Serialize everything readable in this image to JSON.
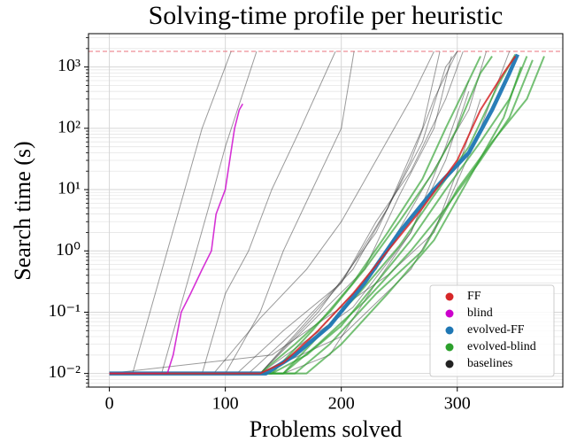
{
  "chart_data": {
    "type": "line",
    "title": "Solving-time profile per heuristic",
    "xlabel": "Problems solved",
    "ylabel": "Search time (s)",
    "yscale": "log",
    "xlim": [
      -18,
      391
    ],
    "ylim": [
      0.006,
      3500
    ],
    "xticks": [
      0,
      100,
      200,
      300
    ],
    "yticks": [
      {
        "value": 0.01,
        "label": "10⁻²"
      },
      {
        "value": 0.1,
        "label": "10⁻¹"
      },
      {
        "value": 1,
        "label": "10⁰"
      },
      {
        "value": 10,
        "label": "10¹"
      },
      {
        "value": 100,
        "label": "10²"
      },
      {
        "value": 1000,
        "label": "10³"
      }
    ],
    "yminorticks": [
      0.006,
      0.007,
      0.008,
      0.009,
      0.02,
      0.03,
      0.04,
      0.05,
      0.06,
      0.07,
      0.08,
      0.09,
      0.2,
      0.3,
      0.4,
      0.5,
      0.6,
      0.7,
      0.8,
      0.9,
      2,
      3,
      4,
      5,
      6,
      7,
      8,
      9,
      20,
      30,
      40,
      50,
      60,
      70,
      80,
      90,
      200,
      300,
      400,
      500,
      600,
      700,
      800,
      900,
      2000,
      3000
    ],
    "grid": true,
    "reference_line": {
      "value": 1800,
      "color": "#e8707c"
    },
    "legend": "lower right",
    "series": [
      {
        "name": "FF",
        "color": "#d62728",
        "lines": [
          {
            "x": [
              0,
              130,
              150,
              180,
              210,
              240,
              270,
              300,
              320,
              340,
              350
            ],
            "values": [
              0.01,
              0.01,
              0.015,
              0.05,
              0.2,
              1,
              5,
              30,
              200,
              800,
              1500
            ]
          }
        ]
      },
      {
        "name": "blind",
        "color": "#cc00cc",
        "lines": [
          {
            "x": [
              0,
              50,
              55,
              62,
              70,
              80,
              88,
              92,
              100,
              108,
              112,
              115
            ],
            "values": [
              0.01,
              0.01,
              0.02,
              0.1,
              0.2,
              0.5,
              1,
              4,
              10,
              100,
              200,
              250
            ]
          }
        ]
      },
      {
        "name": "evolved-FF",
        "color": "#1f77b4",
        "lines": [
          {
            "x": [
              0,
              135,
              160,
              190,
              220,
              250,
              280,
              310,
              330,
              345,
              352
            ],
            "values": [
              0.01,
              0.01,
              0.02,
              0.06,
              0.3,
              2,
              10,
              40,
              200,
              800,
              1600
            ]
          }
        ]
      },
      {
        "name": "evolved-blind",
        "color": "#2ca02c",
        "lines": [
          {
            "x": [
              0,
              140,
              170,
              200,
              230,
              260,
              290,
              320,
              345,
              360
            ],
            "values": [
              0.01,
              0.01,
              0.02,
              0.06,
              0.3,
              1.5,
              10,
              60,
              300,
              1500
            ]
          },
          {
            "x": [
              0,
              160,
              190,
              230,
              270,
              300,
              330,
              360,
              375
            ],
            "values": [
              0.01,
              0.01,
              0.03,
              0.2,
              1,
              10,
              60,
              300,
              1500
            ]
          },
          {
            "x": [
              0,
              130,
              160,
              190,
              220,
              250,
              280,
              300,
              320,
              330
            ],
            "values": [
              0.01,
              0.01,
              0.03,
              0.1,
              0.5,
              3,
              20,
              100,
              800,
              1500
            ]
          },
          {
            "x": [
              0,
              150,
              180,
              220,
              260,
              290,
              320,
              345,
              365
            ],
            "values": [
              0.01,
              0.01,
              0.03,
              0.15,
              1,
              5,
              30,
              150,
              1300
            ]
          },
          {
            "x": [
              0,
              140,
              175,
              210,
              240,
              270,
              290,
              310,
              320
            ],
            "values": [
              0.01,
              0.01,
              0.05,
              0.3,
              2,
              15,
              100,
              600,
              1500
            ]
          },
          {
            "x": [
              0,
              170,
              200,
              240,
              280,
              310,
              340,
              355
            ],
            "values": [
              0.01,
              0.01,
              0.03,
              0.2,
              1.5,
              15,
              150,
              1000
            ]
          },
          {
            "x": [
              0,
              150,
              180,
              215,
              250,
              280,
              310,
              335,
              350
            ],
            "values": [
              0.01,
              0.01,
              0.04,
              0.2,
              1.2,
              8,
              50,
              500,
              1600
            ]
          }
        ]
      },
      {
        "name": "baselines",
        "color": "#222222",
        "lines": [
          {
            "x": [
              0,
              20,
              35,
              50,
              65,
              80,
              105
            ],
            "values": [
              0.01,
              0.01,
              0.1,
              1,
              10,
              100,
              1800
            ]
          },
          {
            "x": [
              0,
              45,
              60,
              75,
              90,
              100,
              127
            ],
            "values": [
              0.01,
              0.01,
              0.1,
              1,
              10,
              50,
              1800
            ]
          },
          {
            "x": [
              0,
              80,
              100,
              120,
              140,
              165,
              195
            ],
            "values": [
              0.01,
              0.01,
              0.2,
              1,
              10,
              100,
              1800
            ]
          },
          {
            "x": [
              0,
              100,
              130,
              150,
              175,
              200,
              211
            ],
            "values": [
              0.01,
              0.01,
              0.1,
              1,
              10,
              100,
              1800
            ]
          },
          {
            "x": [
              0,
              90,
              130,
              170,
              200,
              230,
              260,
              280
            ],
            "values": [
              0.01,
              0.01,
              0.08,
              0.5,
              3,
              30,
              300,
              1800
            ]
          },
          {
            "x": [
              0,
              110,
              150,
              200,
              230,
              260,
              290,
              305
            ],
            "values": [
              0.01,
              0.01,
              0.05,
              0.3,
              3,
              20,
              300,
              1800
            ]
          },
          {
            "x": [
              0,
              120,
              160,
              210,
              240,
              270,
              285
            ],
            "values": [
              0.01,
              0.01,
              0.05,
              0.5,
              5,
              100,
              1800
            ]
          },
          {
            "x": [
              0,
              130,
              180,
              230,
              260,
              280,
              300
            ],
            "values": [
              0.01,
              0.01,
              0.1,
              2,
              30,
              300,
              1800
            ]
          },
          {
            "x": [
              0,
              130,
              200,
              240,
              270,
              290,
              300
            ],
            "values": [
              0.01,
              0.01,
              0.3,
              5,
              60,
              1000,
              1800
            ]
          },
          {
            "x": [
              0,
              130,
              220,
              250,
              280,
              295
            ],
            "values": [
              0.01,
              0.01,
              0.5,
              8,
              100,
              1500
            ]
          },
          {
            "x": [
              0,
              130,
              160,
              230,
              270,
              310,
              325
            ],
            "values": [
              0.01,
              0.01,
              0.02,
              0.5,
              10,
              200,
              1800
            ]
          },
          {
            "x": [
              0,
              130,
              200,
              260,
              290,
              320,
              345
            ],
            "values": [
              0.01,
              0.01,
              0.04,
              0.5,
              5,
              100,
              1800
            ]
          },
          {
            "x": [
              0,
              140,
              200,
              240,
              280,
              300,
              320
            ],
            "values": [
              0.01,
              0.02,
              0.12,
              0.4,
              2,
              20,
              300
            ]
          },
          {
            "x": [
              0,
              150,
              190,
              230,
              260,
              290,
              310
            ],
            "values": [
              0.01,
              0.01,
              0.02,
              0.3,
              2,
              30,
              400
            ]
          },
          {
            "x": [
              0,
              130,
              210,
              260,
              290,
              310
            ],
            "values": [
              0.01,
              0.01,
              0.12,
              2,
              50,
              600
            ]
          }
        ]
      }
    ]
  }
}
